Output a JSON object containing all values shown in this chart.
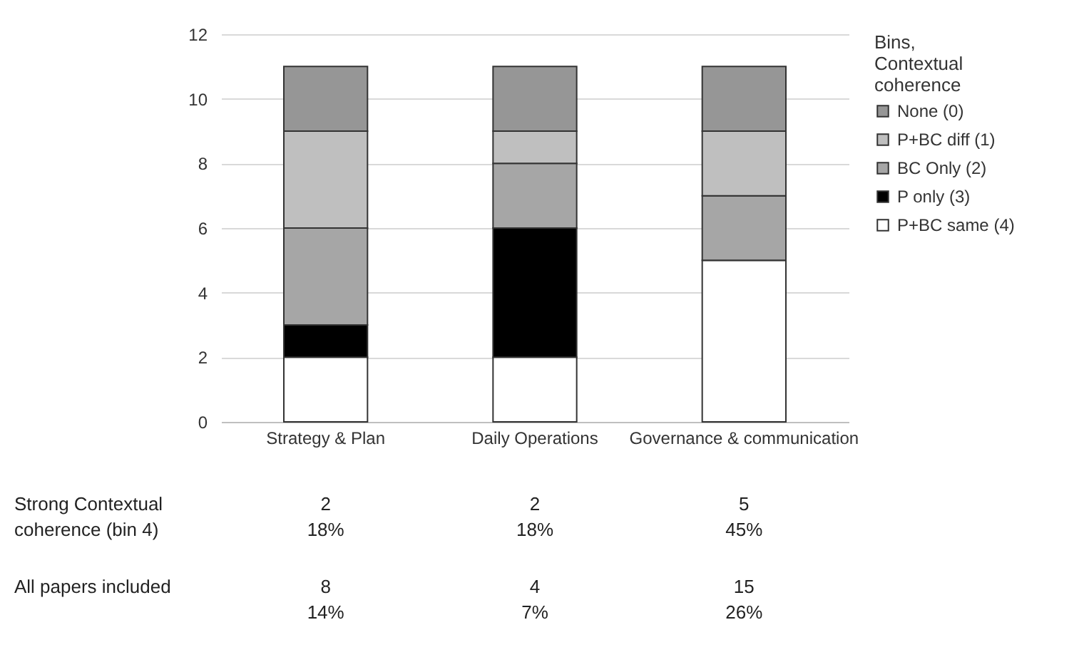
{
  "chart_data": {
    "type": "bar",
    "stacked": true,
    "legend_title": "Bins, Contextual coherence",
    "legend": "right",
    "categories": [
      "Strategy & Plan",
      "Daily Operations",
      "Governance & communication"
    ],
    "series": [
      {
        "name": "P+BC same (4)",
        "color": "#ffffff",
        "values": [
          2,
          2,
          5
        ]
      },
      {
        "name": "P only (3)",
        "color": "#000000",
        "values": [
          1,
          4,
          0
        ]
      },
      {
        "name": "BC Only (2)",
        "color": "#a6a6a6",
        "values": [
          3,
          2,
          2
        ]
      },
      {
        "name": "P+BC diff (1)",
        "color": "#bfbfbf",
        "values": [
          3,
          1,
          2
        ]
      },
      {
        "name": "None (0)",
        "color": "#969696",
        "values": [
          2,
          2,
          2
        ]
      }
    ],
    "ylim": [
      0,
      12
    ],
    "yticks": [
      0,
      2,
      4,
      6,
      8,
      10,
      12
    ],
    "grid": "y",
    "annotations": [
      "Strong Contextual\ncoherence (bin 4)",
      "2\n18%",
      "2\n18%",
      "5\n45%",
      "All papers included",
      "8\n14%",
      "4\n7%",
      "15\n26%"
    ]
  }
}
